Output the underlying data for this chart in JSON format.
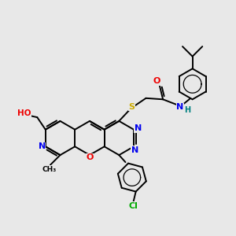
{
  "background_color": "#e8e8e8",
  "figsize": [
    3.0,
    3.0
  ],
  "dpi": 100,
  "colors": {
    "C": "#000000",
    "N": "#0000ee",
    "O": "#ee0000",
    "S": "#ccaa00",
    "Cl": "#00aa00",
    "H": "#008080",
    "bond": "#000000"
  }
}
